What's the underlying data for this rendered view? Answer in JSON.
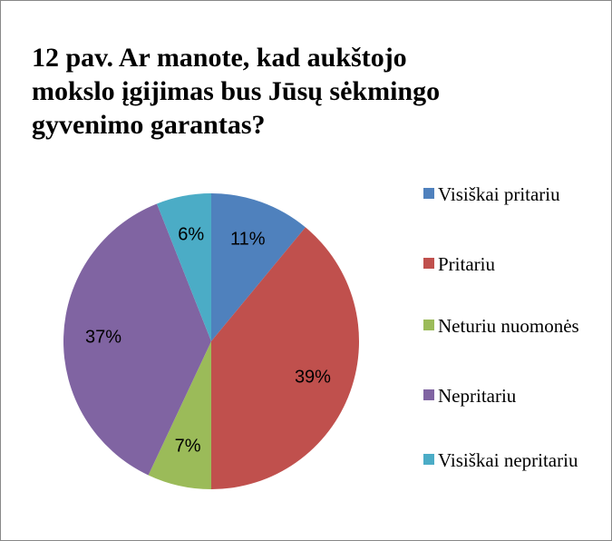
{
  "chart_data": {
    "type": "pie",
    "title": "12 pav. Ar manote, kad aukštojo mokslo įgijimas bus Jūsų sėkmingo gyvenimo garantas?",
    "categories": [
      "Visiškai pritariu",
      "Pritariu",
      "Neturiu nuomonės",
      "Nepritariu",
      "Visiškai nepritariu"
    ],
    "values": [
      11,
      39,
      7,
      37,
      6
    ],
    "value_labels": [
      "11%",
      "39%",
      "7%",
      "37%",
      "6%"
    ],
    "colors": [
      "#4f81bd",
      "#c0504d",
      "#9bbb59",
      "#8064a2",
      "#4bacc6"
    ],
    "legend": "right"
  }
}
